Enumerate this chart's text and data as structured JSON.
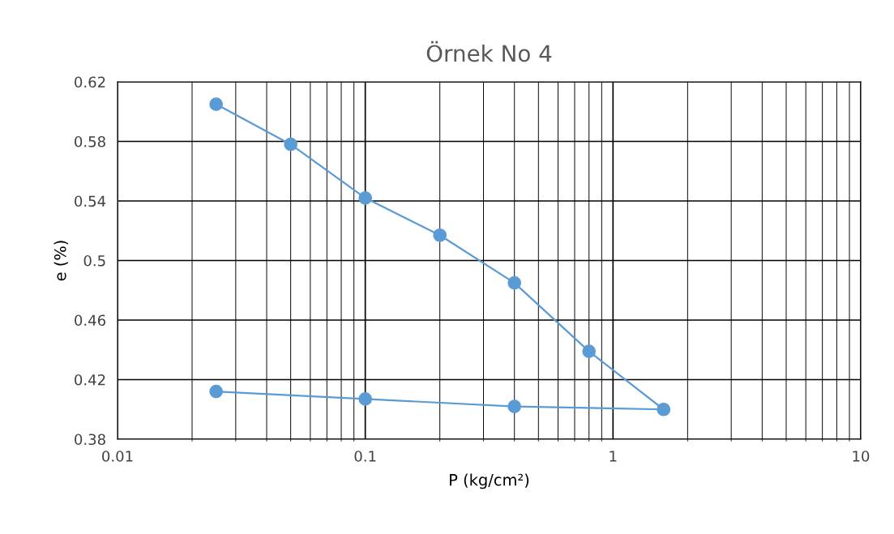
{
  "chart_data": {
    "type": "line",
    "title": "Örnek No 4",
    "xlabel": "P (kg/cm²)",
    "ylabel": "e (%)",
    "log": "x",
    "xlim": [
      0.01,
      10
    ],
    "xticks": [
      0.01,
      0.1,
      1,
      10
    ],
    "ylim": [
      0.38,
      0.62
    ],
    "yticks": [
      0.38,
      0.42,
      0.46,
      0.5,
      0.54,
      0.58,
      0.62
    ],
    "grid": true,
    "marker": "circle",
    "line_style": "solid",
    "series": [
      {
        "color": "#5b9bd5",
        "x": [
          0.025,
          0.05,
          0.1,
          0.2,
          0.4,
          0.8,
          1.6,
          0.4,
          0.1,
          0.025
        ],
        "values": [
          0.605,
          0.578,
          0.542,
          0.517,
          0.485,
          0.439,
          0.4,
          0.402,
          0.407,
          0.412
        ]
      }
    ]
  }
}
